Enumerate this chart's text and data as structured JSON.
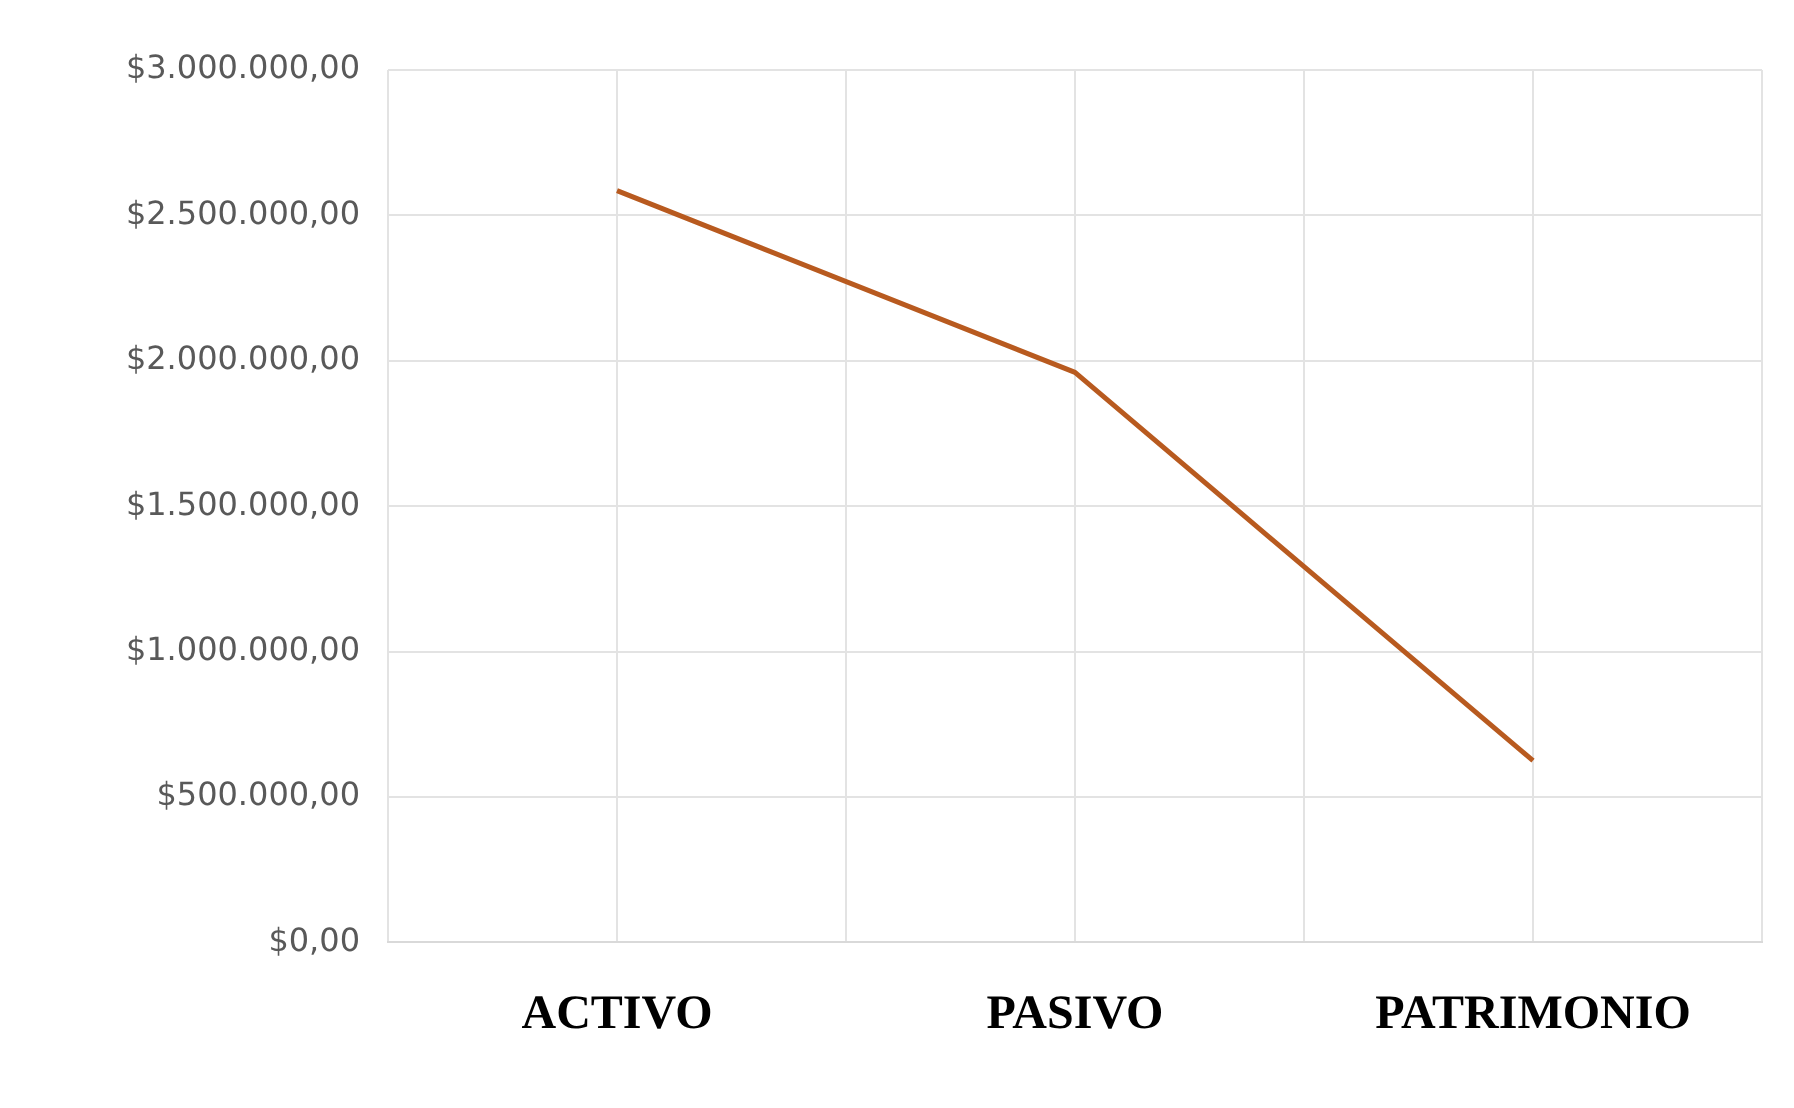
{
  "chart_data": {
    "type": "line",
    "categories": [
      "ACTIVO",
      "PASIVO",
      "PATRIMONIO"
    ],
    "series": [
      {
        "color": "#b85a1f",
        "values": [
          2585000,
          1960000,
          625000
        ]
      }
    ],
    "ylim": [
      0,
      3000000
    ],
    "yticks": [
      {
        "value": 0,
        "label": "$0,00"
      },
      {
        "value": 500000,
        "label": "$500.000,00"
      },
      {
        "value": 1000000,
        "label": "$1.000.000,00"
      },
      {
        "value": 1500000,
        "label": "$1.500.000,00"
      },
      {
        "value": 2000000,
        "label": "$2.000.000,00"
      },
      {
        "value": 2500000,
        "label": "$2.500.000,00"
      },
      {
        "value": 3000000,
        "label": "$3.000.000,00"
      }
    ],
    "grid": true,
    "legend": false,
    "marker": "none",
    "line_style": "solid"
  }
}
